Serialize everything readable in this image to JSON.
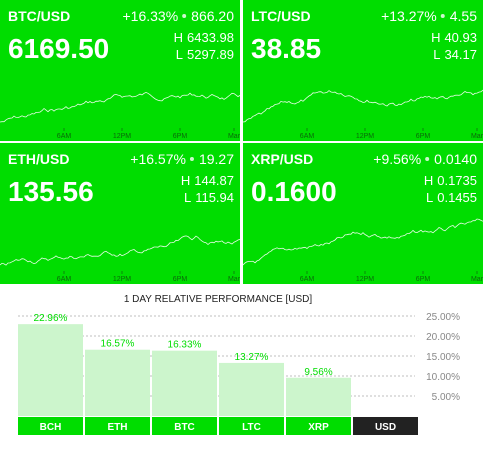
{
  "tickers": [
    {
      "pair": "BTC/USD",
      "change_pct": "+16.33%",
      "change": "866.20",
      "price": "6169.50",
      "high": "6433.98",
      "low": "5297.89"
    },
    {
      "pair": "LTC/USD",
      "change_pct": "+13.27%",
      "change": "4.55",
      "price": "38.85",
      "high": "40.93",
      "low": "34.17"
    },
    {
      "pair": "ETH/USD",
      "change_pct": "+16.57%",
      "change": "19.27",
      "price": "135.56",
      "high": "144.87",
      "low": "115.94"
    },
    {
      "pair": "XRP/USD",
      "change_pct": "+9.56%",
      "change": "0.0140",
      "price": "0.1600",
      "high": "0.1735",
      "low": "0.1455"
    }
  ],
  "high_label": "H",
  "low_label": "L",
  "time_labels": [
    "6AM",
    "12PM",
    "6PM",
    "Mar"
  ],
  "chart_data": {
    "type": "bar",
    "title": "1 DAY RELATIVE PERFORMANCE  [USD]",
    "categories": [
      "BCH",
      "ETH",
      "BTC",
      "LTC",
      "XRP",
      "USD"
    ],
    "values": [
      22.96,
      16.57,
      16.33,
      13.27,
      9.56,
      null
    ],
    "value_labels": [
      "22.96%",
      "16.57%",
      "16.33%",
      "13.27%",
      "9.56%",
      null
    ],
    "color": "#ccf5cc",
    "label_color": "#00dd00",
    "ylim": [
      0,
      25
    ],
    "yticks": [
      {
        "value": 5,
        "label": "5.00%"
      },
      {
        "value": 10,
        "label": "10.00%"
      },
      {
        "value": 15,
        "label": "15.00%"
      },
      {
        "value": 20,
        "label": "20.00%"
      },
      {
        "value": 25,
        "label": "25.00%"
      }
    ],
    "grid": true
  }
}
